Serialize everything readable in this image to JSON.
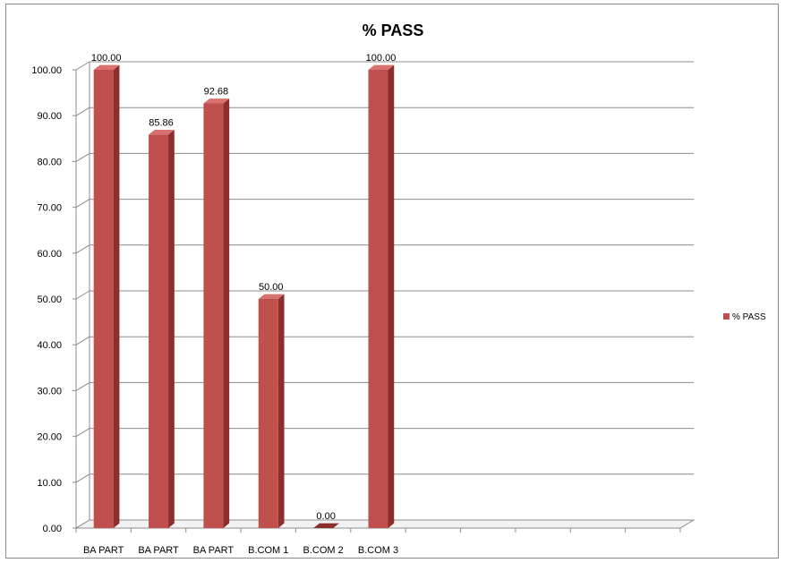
{
  "chart_data": {
    "type": "bar",
    "title": "% PASS",
    "categories": [
      "BA PART",
      "BA PART",
      "BA PART",
      "B.COM 1",
      "B.COM 2",
      "B.COM 3",
      "",
      "",
      "",
      "",
      ""
    ],
    "series": [
      {
        "name": "% PASS",
        "values": [
          100.0,
          85.86,
          92.68,
          50.0,
          0.0,
          100.0,
          null,
          null,
          null,
          null,
          null
        ]
      }
    ],
    "data_labels": [
      "100.00",
      "85.86",
      "92.68",
      "50.00",
      "0.00",
      "100.00"
    ],
    "y_ticks": [
      "0.00",
      "10.00",
      "20.00",
      "30.00",
      "40.00",
      "50.00",
      "60.00",
      "70.00",
      "80.00",
      "90.00",
      "100.00"
    ],
    "ylim": [
      0,
      100
    ],
    "xlabel": "",
    "ylabel": "",
    "grid": true,
    "legend_position": "right",
    "style": "3d-column",
    "colors": {
      "bar_front": "#c0504d",
      "bar_side": "#8b2e2c",
      "bar_top": "#d9726f",
      "grid": "#8c8c8c",
      "frame": "#8c8c8c"
    }
  }
}
